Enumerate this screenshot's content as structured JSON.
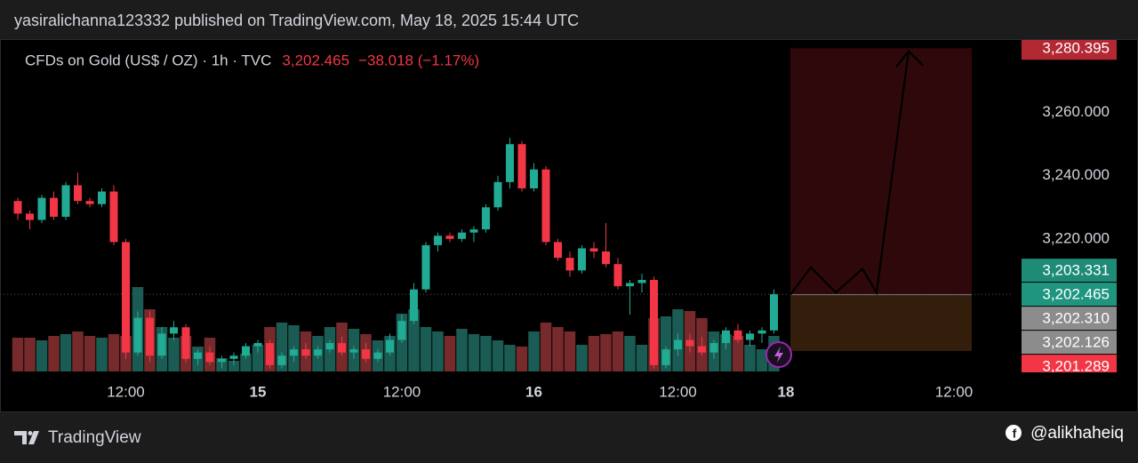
{
  "header": {
    "published": "yasiralichanna123332 published on TradingView.com, May 18, 2025 15:44 UTC"
  },
  "chart_data": {
    "type": "candlestick",
    "symbol": "CFDs on Gold (US$ / OZ) · 1h · TVC",
    "last_price": {
      "value": 3202.465,
      "label": "3,202.465"
    },
    "change_label": "−38.018 (−1.17%)",
    "categories": [
      null,
      null,
      null,
      null,
      null,
      null,
      null,
      null,
      null,
      "12:00",
      null,
      null,
      null,
      null,
      null,
      null,
      null,
      null,
      null,
      null,
      "15",
      null,
      null,
      null,
      null,
      null,
      null,
      null,
      null,
      null,
      null,
      null,
      "12:00",
      null,
      null,
      null,
      null,
      null,
      null,
      null,
      null,
      null,
      null,
      "16",
      null,
      null,
      null,
      null,
      null,
      null,
      null,
      null,
      null,
      null,
      null,
      "12:00",
      null,
      null,
      null,
      null,
      null,
      null,
      null,
      null,
      "18",
      null,
      null,
      null,
      null,
      null,
      null,
      null,
      null,
      null,
      null,
      null,
      null,
      null,
      "12:00",
      null,
      null,
      null,
      null,
      null
    ],
    "open": [
      3232,
      3228,
      3226,
      3233,
      3227,
      3237,
      3232,
      3231,
      3235,
      3219,
      3184,
      3195,
      3183,
      3190,
      3192,
      3182,
      3184,
      3181,
      3182,
      3183,
      3186,
      3187,
      3180,
      3183,
      3185,
      3183,
      3185,
      3187,
      3184,
      3185,
      3182,
      3184,
      3188,
      3194,
      3204,
      3218,
      3221,
      3220,
      3222,
      3223,
      3230,
      3238,
      3250,
      3236,
      3242,
      3219,
      3214,
      3210,
      3217,
      3216,
      3212,
      3205,
      3206,
      3207,
      3180,
      3185,
      3188,
      3186,
      3184,
      3187,
      3191,
      3188,
      3190,
      3191,
      null,
      null,
      null,
      null,
      null,
      null,
      null,
      null,
      null,
      null,
      null,
      null,
      null,
      null,
      null,
      null,
      null,
      null,
      null,
      null
    ],
    "high": [
      3233,
      3229,
      3234,
      3235,
      3238,
      3241,
      3233,
      3236,
      3237,
      3220,
      3197,
      3197,
      3192,
      3194,
      3193,
      3185,
      3186,
      3183,
      3184,
      3187,
      3188,
      3188,
      3184,
      3186,
      3187,
      3186,
      3188,
      3189,
      3186,
      3187,
      3185,
      3190,
      3196,
      3206,
      3219,
      3222,
      3222,
      3223,
      3224,
      3231,
      3240,
      3252,
      3251,
      3244,
      3243,
      3220,
      3216,
      3218,
      3219,
      3225,
      3214,
      3207,
      3209,
      3208,
      3186,
      3190,
      3190,
      3189,
      3188,
      3192,
      3193,
      3191,
      3192,
      3204,
      null,
      null,
      null,
      null,
      null,
      null,
      null,
      null,
      null,
      null,
      null,
      null,
      null,
      null,
      null,
      null,
      null,
      null,
      null,
      null
    ],
    "low": [
      3226,
      3223,
      3225,
      3226,
      3226,
      3231,
      3230,
      3230,
      3218,
      3182,
      3183,
      3181,
      3182,
      3188,
      3181,
      3180,
      3180,
      3179,
      3180,
      3182,
      3184,
      3179,
      3179,
      3181,
      3182,
      3182,
      3184,
      3183,
      3182,
      3181,
      3181,
      3183,
      3187,
      3193,
      3203,
      3216,
      3219,
      3219,
      3219,
      3222,
      3229,
      3236,
      3235,
      3235,
      3218,
      3213,
      3208,
      3209,
      3214,
      3211,
      3204,
      3196,
      3203,
      3179,
      3179,
      3183,
      3184,
      3183,
      3182,
      3185,
      3187,
      3186,
      3187,
      3190,
      null,
      null,
      null,
      null,
      null,
      null,
      null,
      null,
      null,
      null,
      null,
      null,
      null,
      null,
      null,
      null,
      null,
      null,
      null,
      null
    ],
    "close": [
      3228,
      3226,
      3233,
      3227,
      3237,
      3232,
      3231,
      3235,
      3219,
      3184,
      3195,
      3183,
      3190,
      3192,
      3182,
      3184,
      3181,
      3182,
      3183,
      3186,
      3187,
      3180,
      3183,
      3185,
      3183,
      3185,
      3187,
      3184,
      3185,
      3182,
      3184,
      3188,
      3194,
      3204,
      3218,
      3221,
      3220,
      3222,
      3223,
      3230,
      3238,
      3250,
      3236,
      3242,
      3219,
      3214,
      3210,
      3217,
      3216,
      3212,
      3205,
      3206,
      3207,
      3180,
      3185,
      3188,
      3186,
      3184,
      3187,
      3191,
      3188,
      3190,
      3191,
      3202.465,
      null,
      null,
      null,
      null,
      null,
      null,
      null,
      null,
      null,
      null,
      null,
      null,
      null,
      null,
      null,
      null,
      null,
      null,
      null,
      null
    ],
    "volume": [
      38,
      38,
      35,
      40,
      42,
      45,
      40,
      38,
      42,
      40,
      95,
      70,
      50,
      38,
      40,
      28,
      38,
      15,
      12,
      20,
      30,
      50,
      55,
      52,
      45,
      40,
      50,
      55,
      48,
      42,
      35,
      40,
      65,
      70,
      50,
      45,
      40,
      48,
      42,
      40,
      35,
      30,
      28,
      45,
      55,
      50,
      45,
      30,
      40,
      42,
      45,
      40,
      30,
      60,
      62,
      70,
      68,
      60,
      45,
      42,
      40,
      30,
      25,
      40,
      null,
      null,
      null,
      null,
      null,
      null,
      null,
      null,
      null,
      null,
      null,
      null,
      null,
      null,
      null,
      null,
      null,
      null,
      null,
      null
    ],
    "up_color": "#22ab94",
    "down_color": "#f23645",
    "volume_up_color": "#1a5c53",
    "volume_down_color": "#762a2c",
    "ylim": [
      3178,
      3283
    ],
    "yticks": [
      {
        "value": 3220,
        "label": "3,220.000"
      },
      {
        "value": 3240,
        "label": "3,240.000"
      },
      {
        "value": 3260,
        "label": "3,260.000"
      }
    ],
    "grid": false,
    "price_labels": [
      {
        "value": 3280.395,
        "label": "3,280.395",
        "color": "#b22833"
      },
      {
        "value": 3203.331,
        "label": "3,203.331",
        "color": "#1e8b77"
      },
      {
        "value": 3202.465,
        "label": "3,202.465",
        "color": "#1f9580"
      },
      {
        "value": 3202.31,
        "label": "3,202.310",
        "color": "#8c8c8c"
      },
      {
        "value": 3202.126,
        "label": "3,202.126",
        "color": "#8c8c8c"
      },
      {
        "value": 3201.289,
        "label": "3,201.289",
        "color": "#f23645"
      }
    ],
    "position": {
      "target": 3280.395,
      "entry": 3202.31,
      "stop": 3184.5
    },
    "projection": [
      3202.3,
      3211,
      3203,
      3210.5,
      3203,
      3279.5
    ]
  },
  "footer": {
    "brand": "TradingView",
    "handle": "@alikhaheiq"
  }
}
